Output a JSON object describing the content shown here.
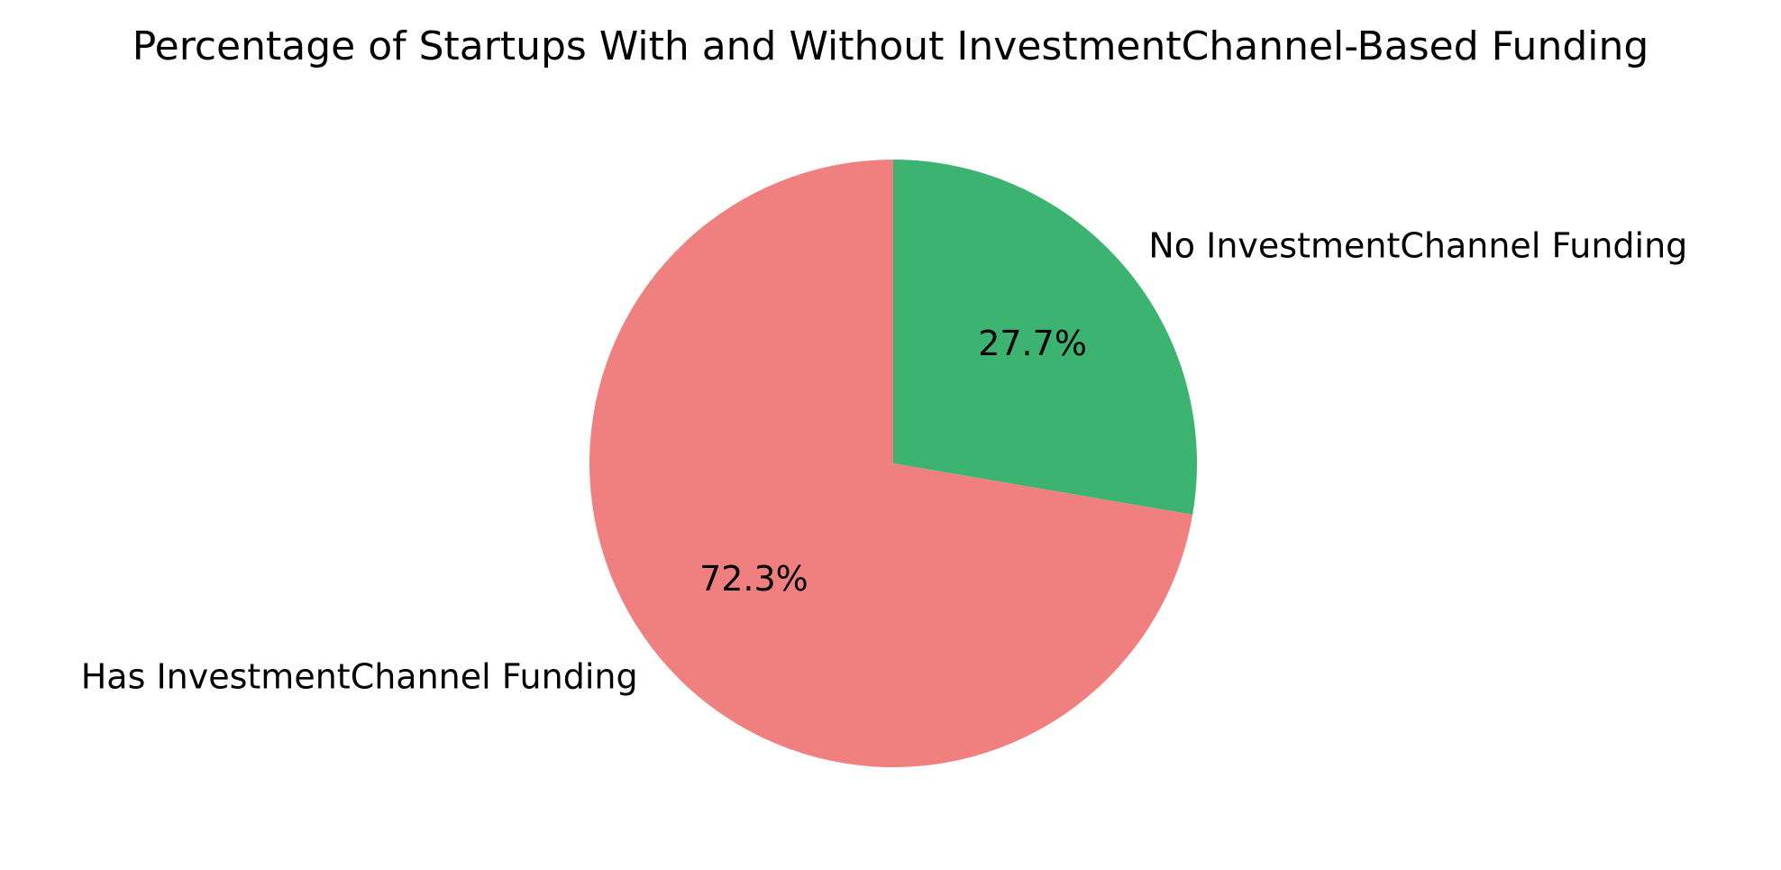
{
  "chart_data": {
    "type": "pie",
    "title": "Percentage of Startups With and Without InvestmentChannel-Based Funding",
    "start_angle_deg": 90,
    "counterclock": false,
    "slices": [
      {
        "label": "No InvestmentChannel Funding",
        "value": 27.7,
        "pct_label": "27.7%",
        "color": "#3CB371"
      },
      {
        "label": "Has InvestmentChannel Funding",
        "value": 72.3,
        "pct_label": "72.3%",
        "color": "#F08080"
      }
    ]
  }
}
